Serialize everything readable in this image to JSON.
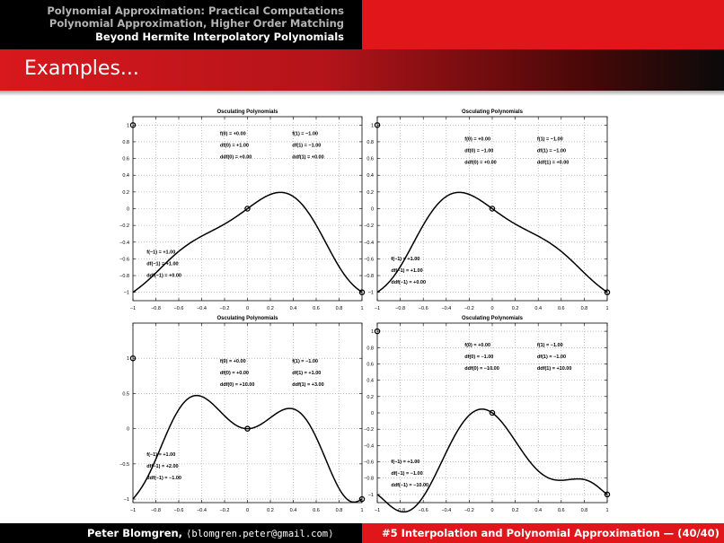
{
  "header": {
    "nav": [
      "Polynomial Approximation: Practical Computations",
      "Polynomial Approximation, Higher Order Matching",
      "Beyond Hermite Interpolatory Polynomials"
    ],
    "current_index": 2
  },
  "frame_title": "Examples...",
  "footer": {
    "author": "Peter Blomgren,",
    "email": "⟨blomgren.peter@gmail.com⟩",
    "talk": "#5 Interpolation and Polynomial Approximation — (40/40)"
  },
  "chart_data": [
    {
      "type": "line",
      "title": "Osculating Polynomials",
      "xlim": [
        -1,
        1
      ],
      "ylim": [
        -1.1,
        1.1
      ],
      "grid": true,
      "xticks": [
        -1,
        -0.8,
        -0.6,
        -0.4,
        -0.2,
        0,
        0.2,
        0.4,
        0.6,
        0.8,
        1
      ],
      "xtick_labels": [
        "−1",
        "−0.8",
        "−0.6",
        "−0.4",
        "−0.2",
        "0",
        "0.2",
        "0.4",
        "0.6",
        "0.8",
        "1"
      ],
      "yticks": [
        -1,
        -0.8,
        -0.6,
        -0.4,
        -0.2,
        0,
        0.2,
        0.4,
        0.6,
        0.8,
        1
      ],
      "ytick_labels": [
        "−1",
        "−0.8",
        "−0.6",
        "−0.4",
        "−0.2",
        "0",
        "0.2",
        "0.4",
        "0.6",
        "0.8",
        "1"
      ],
      "nodes": [
        [
          -1,
          1
        ],
        [
          0,
          0
        ],
        [
          1,
          -1
        ]
      ],
      "conditions": [
        [
          -1,
          1,
          0
        ],
        [
          0,
          1,
          0
        ],
        [
          -1,
          -1,
          0
        ]
      ],
      "annotations": {
        "left": [
          "f(−1)  = +1.00",
          "df(−1)  = +1.00",
          "ddf(−1) = +0.00"
        ],
        "mid": [
          "f(0)  = +0.00",
          "df(0)  = +1.00",
          "ddf(0) = +0.00"
        ],
        "right": [
          "f(1)  = −1.00",
          "df(1)  = −1.00",
          "ddf(1) = +0.00"
        ]
      }
    },
    {
      "type": "line",
      "title": "Osculating Polynomials",
      "xlim": [
        -1,
        1
      ],
      "ylim": [
        -1.1,
        1.1
      ],
      "grid": true,
      "xticks": [
        -1,
        -0.8,
        -0.6,
        -0.4,
        -0.2,
        0,
        0.2,
        0.4,
        0.6,
        0.8,
        1
      ],
      "xtick_labels": [
        "−1",
        "−0.8",
        "−0.6",
        "−0.4",
        "−0.2",
        "0",
        "0.2",
        "0.4",
        "0.6",
        "0.8",
        "1"
      ],
      "yticks": [
        -1,
        -0.8,
        -0.6,
        -0.4,
        -0.2,
        0,
        0.2,
        0.4,
        0.6,
        0.8,
        1
      ],
      "ytick_labels": [
        "−1",
        "−0.8",
        "−0.6",
        "−0.4",
        "−0.2",
        "0",
        "0.2",
        "0.4",
        "0.6",
        "0.8",
        "1"
      ],
      "nodes": [
        [
          -1,
          1
        ],
        [
          0,
          0
        ],
        [
          1,
          -1
        ]
      ],
      "conditions": [
        [
          -1,
          1,
          0
        ],
        [
          0,
          -1,
          0
        ],
        [
          -1,
          -1,
          0
        ]
      ],
      "annotations": {
        "left": [
          "f(−1)  = +1.00",
          "df(−1)  = +1.00",
          "ddf(−1) = +0.00"
        ],
        "mid": [
          "f(0)  = +0.00",
          "df(0)  = −1.00",
          "ddf(0) = +0.00"
        ],
        "right": [
          "f(1)  = −1.00",
          "df(1)  = −1.00",
          "ddf(1) = +0.00"
        ]
      }
    },
    {
      "type": "line",
      "title": "Osculating Polynomials",
      "xlim": [
        -1,
        1
      ],
      "ylim": [
        -1.05,
        1.5
      ],
      "grid": true,
      "xticks": [
        -1,
        -0.8,
        -0.6,
        -0.4,
        -0.2,
        0,
        0.2,
        0.4,
        0.6,
        0.8,
        1
      ],
      "xtick_labels": [
        "−1",
        "−0.8",
        "−0.6",
        "−0.4",
        "−0.2",
        "0",
        "0.2",
        "0.4",
        "0.6",
        "0.8",
        "1"
      ],
      "yticks": [
        -1,
        -0.5,
        0,
        0.5,
        1
      ],
      "ytick_labels": [
        "−1",
        "−0.5",
        "0",
        "0.5",
        "1"
      ],
      "nodes": [
        [
          -1,
          1
        ],
        [
          0,
          0
        ],
        [
          1,
          -1
        ]
      ],
      "conditions": [
        [
          -1,
          2,
          -1
        ],
        [
          0,
          0,
          10
        ],
        [
          -1,
          1,
          3
        ]
      ],
      "annotations": {
        "left": [
          "f(−1)  = +1.00",
          "df(−1)  = +2.00",
          "ddf(−1) = −1.00"
        ],
        "mid": [
          "f(0)  = +0.00",
          "df(0)  = +0.00",
          "ddf(0) = +10.00"
        ],
        "right": [
          "f(1)  = −1.00",
          "df(1)  = +1.00",
          "ddf(1) = +3.00"
        ]
      }
    },
    {
      "type": "line",
      "title": "Osculating Polynomials",
      "xlim": [
        -1,
        1
      ],
      "ylim": [
        -1.1,
        1.1
      ],
      "grid": true,
      "xticks": [
        -1,
        -0.8,
        -0.6,
        -0.4,
        -0.2,
        0,
        0.2,
        0.4,
        0.6,
        0.8,
        1
      ],
      "xtick_labels": [
        "−1",
        "−0.8",
        "−0.6",
        "−0.4",
        "−0.2",
        "0",
        "0.2",
        "0.4",
        "0.6",
        "0.8",
        "1"
      ],
      "yticks": [
        -1,
        -0.8,
        -0.6,
        -0.4,
        -0.2,
        0,
        0.2,
        0.4,
        0.6,
        0.8,
        1
      ],
      "ytick_labels": [
        "−1",
        "−0.8",
        "−0.6",
        "−0.4",
        "−0.2",
        "0",
        "0.2",
        "0.4",
        "0.6",
        "0.8",
        "1"
      ],
      "nodes": [
        [
          -1,
          1
        ],
        [
          0,
          0
        ],
        [
          1,
          -1
        ]
      ],
      "conditions": [
        [
          -1,
          -1,
          -10
        ],
        [
          0,
          -1,
          -10
        ],
        [
          -1,
          -1,
          10
        ]
      ],
      "annotations": {
        "left": [
          "f(−1)  = +1.00",
          "df(−1)  = −1.00",
          "ddf(−1) = −10.00"
        ],
        "mid": [
          "f(0)  = +0.00",
          "df(0)  = −1.00",
          "ddf(0) = −10.00"
        ],
        "right": [
          "f(1)  = −1.00",
          "df(1)  = −1.00",
          "ddf(1) = +10.00"
        ]
      }
    }
  ]
}
